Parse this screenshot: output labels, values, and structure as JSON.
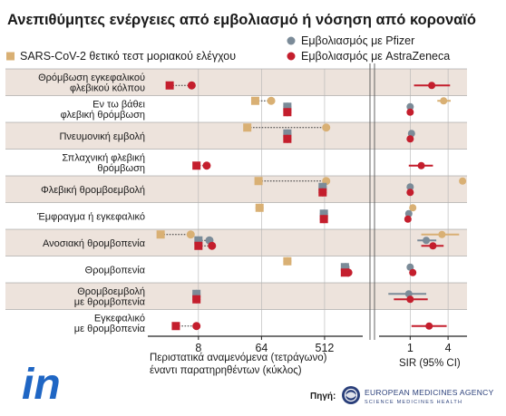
{
  "title": "Ανεπιθύμητες ενέργειες από εμβολιασμό ή νόσηση από κοροναϊό",
  "legend": {
    "pfizer": "Εμβολιασμός με Pfizer",
    "sars": "SARS-CoV-2 θετικό τεστ μοριακού ελέγχου",
    "astrazeneca": "Εμβολιασμός με AstraZeneca"
  },
  "colors": {
    "pfizer": "#7b8b98",
    "sars": "#d9b074",
    "astrazeneca": "#c41e2d",
    "band": "#ede3dc",
    "line": "#222222"
  },
  "left_axis": {
    "ticks": [
      {
        "value": 8,
        "label": "8"
      },
      {
        "value": 64,
        "label": "64"
      },
      {
        "value": 512,
        "label": "512"
      }
    ],
    "scale": "log2",
    "range": [
      1.6,
      1800
    ],
    "caption_line1": "Περιστατικά αναμενόμενα (τετράγωνο)",
    "caption_line2": "έναντι παρατηρηθέντων (κύκλος)"
  },
  "right_axis": {
    "ticks": [
      {
        "value": 1,
        "label": "1"
      },
      {
        "value": 4,
        "label": "4"
      }
    ],
    "scale": "log2",
    "range": [
      0.32,
      8
    ],
    "caption": "SIR (95% CI)"
  },
  "chart_data": {
    "type": "dot-plot",
    "rows": [
      {
        "label": [
          "Θρόμβωση εγκεφαλικού",
          "φλεβικού κόλπου"
        ],
        "counts": [
          {
            "series": "astrazeneca",
            "expected": 3.1,
            "observed": 6.4
          }
        ],
        "sir": [
          {
            "series": "astrazeneca",
            "est": 2.2,
            "lo": 1.15,
            "hi": 4.3
          }
        ]
      },
      {
        "label": [
          "Εν τω βάθει",
          "φλεβική θρόμβωση"
        ],
        "counts": [
          {
            "series": "sars",
            "expected": 52,
            "observed": 88
          },
          {
            "series": "pfizer",
            "expected": 150,
            "observed": 150
          },
          {
            "series": "astrazeneca",
            "expected": 150,
            "observed": 150
          }
        ],
        "sir": [
          {
            "series": "sars",
            "est": 3.4,
            "lo": 2.7,
            "hi": 4.4
          },
          {
            "series": "pfizer",
            "est": 1.0,
            "lo": 0.92,
            "hi": 1.1
          },
          {
            "series": "astrazeneca",
            "est": 1.0,
            "lo": 0.9,
            "hi": 1.12
          }
        ]
      },
      {
        "label": [
          "Πνευμονική εμβολή"
        ],
        "counts": [
          {
            "series": "sars",
            "expected": 40,
            "observed": 540
          },
          {
            "series": "pfizer",
            "expected": 150,
            "observed": 150
          },
          {
            "series": "astrazeneca",
            "expected": 150,
            "observed": 150
          }
        ],
        "sir": [
          {
            "series": "pfizer",
            "est": 1.05,
            "lo": 0.95,
            "hi": 1.15
          },
          {
            "series": "astrazeneca",
            "est": 1.0,
            "lo": 0.9,
            "hi": 1.12
          }
        ]
      },
      {
        "label": [
          "Σπλαχνική φλεβική",
          "θρόμβωση"
        ],
        "counts": [
          {
            "series": "astrazeneca",
            "expected": 7.5,
            "observed": 10.5
          }
        ],
        "sir": [
          {
            "series": "astrazeneca",
            "est": 1.5,
            "lo": 0.95,
            "hi": 2.3
          }
        ]
      },
      {
        "label": [
          "Φλεβική θρομβοεμβολή"
        ],
        "counts": [
          {
            "series": "sars",
            "expected": 58,
            "observed": 540
          },
          {
            "series": "pfizer",
            "expected": 480,
            "observed": 480
          },
          {
            "series": "astrazeneca",
            "expected": 480,
            "observed": 480
          }
        ],
        "sir": [
          {
            "series": "sars",
            "est": 6.8
          },
          {
            "series": "pfizer",
            "est": 1.0,
            "lo": 0.95,
            "hi": 1.05
          },
          {
            "series": "astrazeneca",
            "est": 1.0,
            "lo": 0.93,
            "hi": 1.08
          }
        ]
      },
      {
        "label": [
          "Έμφραγμα ή εγκεφαλικό"
        ],
        "counts": [
          {
            "series": "sars",
            "expected": 60,
            "observed": 60
          },
          {
            "series": "pfizer",
            "expected": 500,
            "observed": 500
          },
          {
            "series": "astrazeneca",
            "expected": 500,
            "observed": 500
          }
        ],
        "sir": [
          {
            "series": "sars",
            "est": 1.1,
            "lo": 1.0,
            "hi": 1.2
          },
          {
            "series": "pfizer",
            "est": 0.95,
            "lo": 0.88,
            "hi": 1.02
          },
          {
            "series": "astrazeneca",
            "est": 0.92,
            "lo": 0.85,
            "hi": 1.0
          }
        ]
      },
      {
        "label": [
          "Ανοσιακή θρομβοπενία"
        ],
        "counts": [
          {
            "series": "sars",
            "expected": 2.3,
            "observed": 6.2
          },
          {
            "series": "pfizer",
            "expected": 8,
            "observed": 11.5
          },
          {
            "series": "astrazeneca",
            "expected": 8,
            "observed": 12.5
          }
        ],
        "sir": [
          {
            "series": "sars",
            "est": 3.2,
            "lo": 1.5,
            "hi": 6.0
          },
          {
            "series": "pfizer",
            "est": 1.8,
            "lo": 1.3,
            "hi": 2.6
          },
          {
            "series": "astrazeneca",
            "est": 2.3,
            "lo": 1.5,
            "hi": 3.4
          }
        ]
      },
      {
        "label": [
          "Θρομβοπενία"
        ],
        "counts": [
          {
            "series": "sars",
            "expected": 150,
            "observed": 150
          },
          {
            "series": "pfizer",
            "expected": 1000,
            "observed": 1020
          },
          {
            "series": "astrazeneca",
            "expected": 1000,
            "observed": 1120
          }
        ],
        "sir": [
          {
            "series": "pfizer",
            "est": 1.0,
            "lo": 0.94,
            "hi": 1.06
          },
          {
            "series": "astrazeneca",
            "est": 1.1,
            "lo": 1.02,
            "hi": 1.18
          }
        ]
      },
      {
        "label": [
          "Θρομβοεμβολή",
          "με θρομβοπενία"
        ],
        "counts": [
          {
            "series": "pfizer",
            "expected": 7.5,
            "observed": 7.5
          },
          {
            "series": "astrazeneca",
            "expected": 7.5,
            "observed": 7.5
          }
        ],
        "sir": [
          {
            "series": "pfizer",
            "est": 0.95,
            "lo": 0.45,
            "hi": 1.8
          },
          {
            "series": "astrazeneca",
            "est": 1.0,
            "lo": 0.55,
            "hi": 1.9
          }
        ]
      },
      {
        "label": [
          "Εγκεφαλικό",
          "με θρομβοπενία"
        ],
        "counts": [
          {
            "series": "astrazeneca",
            "expected": 3.8,
            "observed": 7.5
          }
        ],
        "sir": [
          {
            "series": "astrazeneca",
            "est": 2.0,
            "lo": 1.05,
            "hi": 3.8
          }
        ]
      }
    ]
  },
  "source": {
    "label": "Πηγή:",
    "org_line1": "EUROPEAN MEDICINES AGENCY",
    "org_line2": "SCIENCE  MEDICINES  HEALTH"
  },
  "logo": "in"
}
